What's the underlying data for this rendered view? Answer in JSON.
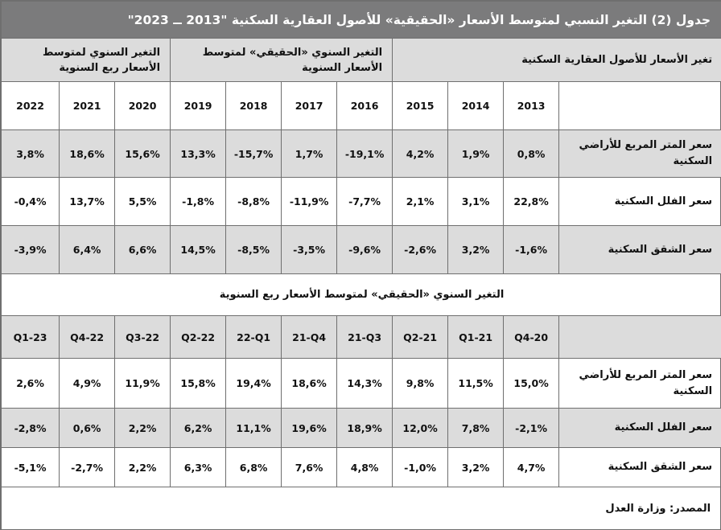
{
  "title": "جدول (2) التغير النسبي لمتوسط الأسعار «الحقيقية» للأصول العقارية السكنية \"2013 ــ 2023\"",
  "groups": {
    "nominal": "تغير الأسعار للأصول العقارية السكنية",
    "real": "التغير السنوي «الحقيقي» لمتوسط الأسعار السنوية",
    "quarterly_avg": "التغير السنوي لمتوسط الأسعار ربع السنوية"
  },
  "years": [
    "2013",
    "2014",
    "2015",
    "2016",
    "2017",
    "2018",
    "2019",
    "2020",
    "2021",
    "2022"
  ],
  "rows_annual": [
    {
      "label": "سعر المتر المربع للأراضي السكنية",
      "values": [
        "0,8%",
        "1,9%",
        "4,2%",
        "-19,1%",
        "1,7%",
        "-15,7%",
        "13,3%",
        "15,6%",
        "18,6%",
        "3,8%"
      ]
    },
    {
      "label": "سعر الفلل السكنية",
      "values": [
        "22,8%",
        "3,1%",
        "2,1%",
        "-7,7%",
        "-11,9%",
        "-8,8%",
        "-1,8%",
        "5,5%",
        "13,7%",
        "-0,4%"
      ]
    },
    {
      "label": "سعر الشقق السكنية",
      "values": [
        "-1,6%",
        "3,2%",
        "-2,6%",
        "-9,6%",
        "-3,5%",
        "-8,5%",
        "14,5%",
        "6,6%",
        "6,4%",
        "-3,9%"
      ]
    }
  ],
  "section_quarterly": "التغير السنوي «الحقيقي» لمتوسط الأسعار ربع السنوية",
  "quarters": [
    "Q4-20",
    "Q1-21",
    "Q2-21",
    "21-Q3",
    "21-Q4",
    "22-Q1",
    "Q2-22",
    "Q3-22",
    "Q4-22",
    "Q1-23"
  ],
  "rows_quarterly": [
    {
      "label": "سعر المتر المربع للأراضي السكنية",
      "values": [
        "15,0%",
        "11,5%",
        "9,8%",
        "14,3%",
        "18,6%",
        "19,4%",
        "15,8%",
        "11,9%",
        "4,9%",
        "2,6%"
      ]
    },
    {
      "label": "سعر الفلل السكنية",
      "values": [
        "-2,1%",
        "7,8%",
        "12,0%",
        "18,9%",
        "19,6%",
        "11,1%",
        "6,2%",
        "2,2%",
        "0,6%",
        "-2,8%"
      ]
    },
    {
      "label": "سعر الشقق السكنية",
      "values": [
        "4,7%",
        "3,2%",
        "-1,0%",
        "4,8%",
        "7,6%",
        "6,8%",
        "6,3%",
        "2,2%",
        "-2,7%",
        "-5,1%"
      ]
    }
  ],
  "source": "المصدر: وزارة العدل"
}
